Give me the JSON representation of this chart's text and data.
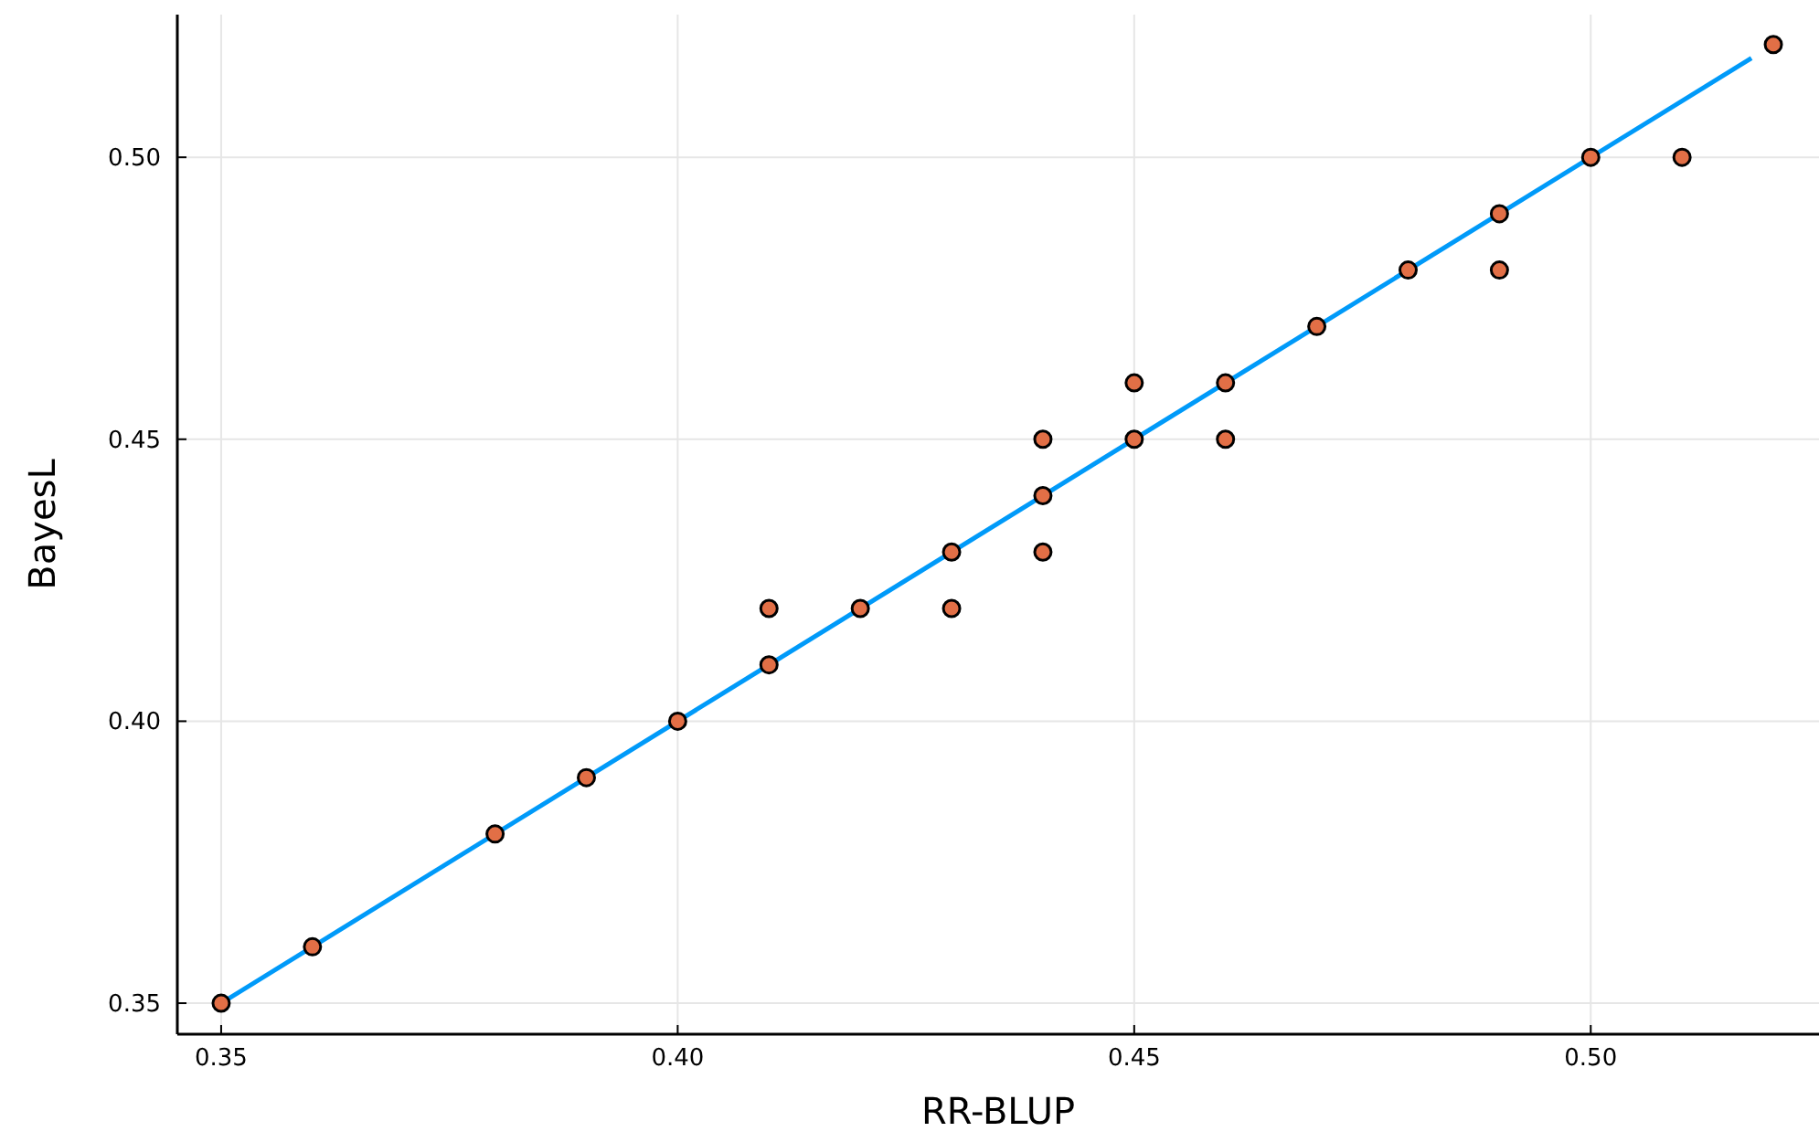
{
  "chart_data": {
    "type": "scatter",
    "xlabel": "RR-BLUP",
    "ylabel": "BayesL",
    "xlim": [
      0.3452,
      0.525
    ],
    "ylim": [
      0.3445,
      0.5253
    ],
    "xticks": [
      {
        "value": 0.35,
        "label": "0.35"
      },
      {
        "value": 0.4,
        "label": "0.40"
      },
      {
        "value": 0.45,
        "label": "0.45"
      },
      {
        "value": 0.5,
        "label": "0.50"
      }
    ],
    "yticks": [
      {
        "value": 0.35,
        "label": "0.35"
      },
      {
        "value": 0.4,
        "label": "0.40"
      },
      {
        "value": 0.45,
        "label": "0.45"
      },
      {
        "value": 0.5,
        "label": "0.50"
      }
    ],
    "grid": true,
    "series": [
      {
        "type": "line",
        "color": "#009af9",
        "x": [
          0.35,
          0.5176
        ],
        "values": [
          0.35,
          0.5176
        ]
      },
      {
        "color": "#e26f46",
        "marker": "circle",
        "x": [
          0.35,
          0.36,
          0.38,
          0.39,
          0.4,
          0.41,
          0.41,
          0.42,
          0.43,
          0.43,
          0.44,
          0.44,
          0.44,
          0.45,
          0.45,
          0.46,
          0.46,
          0.47,
          0.48,
          0.49,
          0.49,
          0.5,
          0.51,
          0.52
        ],
        "values": [
          0.35,
          0.36,
          0.38,
          0.39,
          0.4,
          0.41,
          0.42,
          0.42,
          0.43,
          0.42,
          0.44,
          0.45,
          0.43,
          0.45,
          0.46,
          0.46,
          0.45,
          0.47,
          0.48,
          0.49,
          0.48,
          0.5,
          0.5,
          0.52
        ]
      }
    ]
  }
}
